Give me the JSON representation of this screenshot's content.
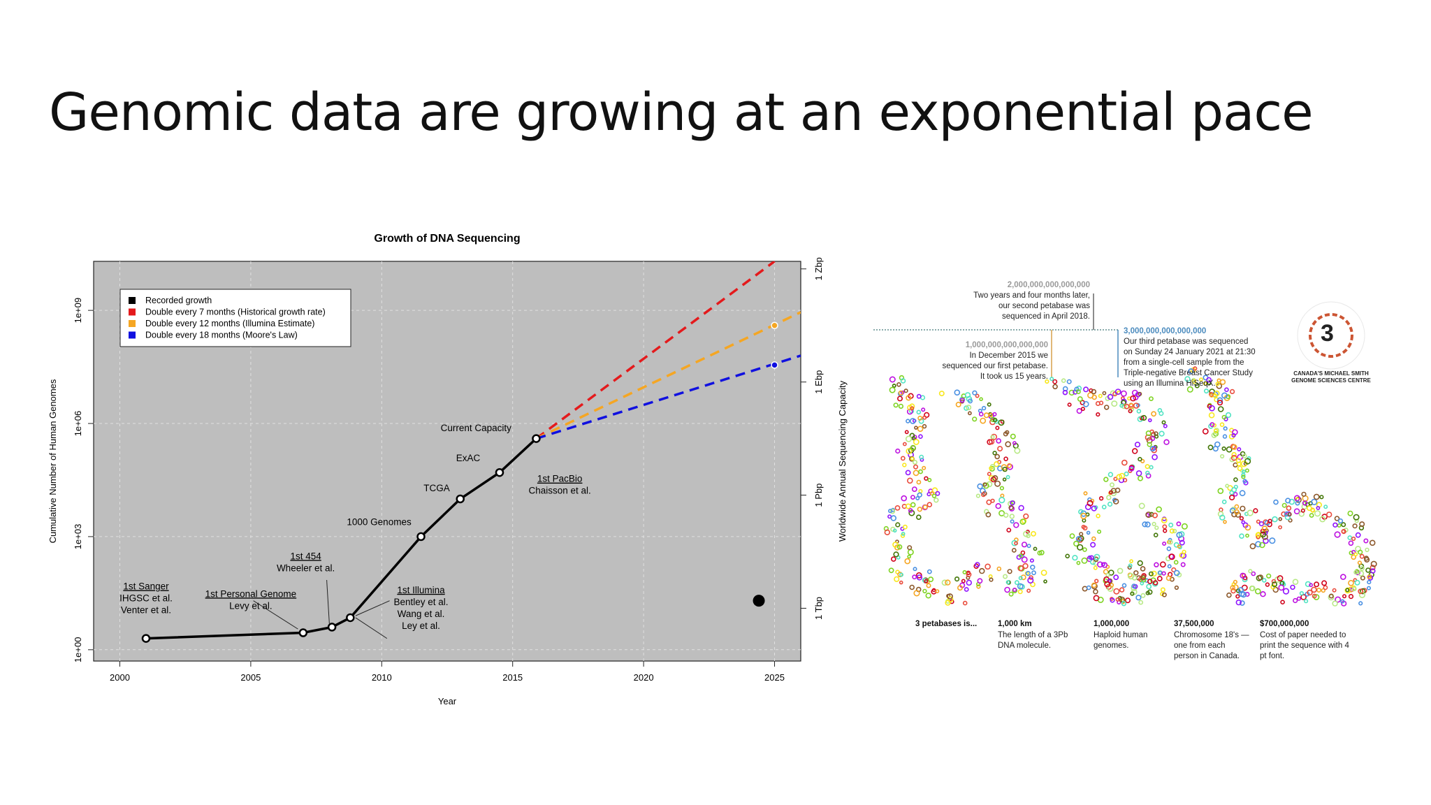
{
  "slide": {
    "title": "Genomic data are growing at an exponential pace"
  },
  "chart_data": {
    "type": "line",
    "title": "Growth of DNA Sequencing",
    "xlabel": "Year",
    "ylabel": "Cumulative Number of Human Genomes",
    "y2label": "Worldwide Annual Sequencing Capacity",
    "log_scale_y": true,
    "xlim": [
      1999,
      2026
    ],
    "ylim_log10": [
      -0.3,
      10.3
    ],
    "x_ticks": [
      2000,
      2005,
      2010,
      2015,
      2020,
      2025
    ],
    "y_ticks": [
      {
        "label": "1e+00",
        "log10": 0
      },
      {
        "label": "1e+03",
        "log10": 3
      },
      {
        "label": "1e+06",
        "log10": 6
      },
      {
        "label": "1e+09",
        "log10": 9
      }
    ],
    "y2_ticks": [
      {
        "label": "1 Tbp",
        "log10": 1.1
      },
      {
        "label": "1 Pbp",
        "log10": 4.1
      },
      {
        "label": "1 Ebp",
        "log10": 7.1
      },
      {
        "label": "1 Zbp",
        "log10": 10.1
      }
    ],
    "grid": true,
    "legend_position": "top-left",
    "legend": [
      {
        "label": "Recorded growth",
        "color": "#000000"
      },
      {
        "label": "Double every 7 months (Historical growth rate)",
        "color": "#e41a1c"
      },
      {
        "label": "Double every 12 months (Illumina Estimate)",
        "color": "#f5a623"
      },
      {
        "label": "Double every 18 months (Moore's Law)",
        "color": "#1010e0"
      }
    ],
    "series": [
      {
        "name": "Recorded growth",
        "color": "#000000",
        "points": [
          {
            "x": 2001,
            "log10": 0.3
          },
          {
            "x": 2007,
            "log10": 0.45
          },
          {
            "x": 2008.1,
            "log10": 0.6
          },
          {
            "x": 2008.8,
            "log10": 0.85
          },
          {
            "x": 2011.5,
            "log10": 3.0
          },
          {
            "x": 2013,
            "log10": 4.0
          },
          {
            "x": 2014.5,
            "log10": 4.7
          },
          {
            "x": 2015.9,
            "log10": 5.6
          }
        ]
      },
      {
        "name": "Double every 7 months (Historical growth rate)",
        "color": "#e41a1c",
        "dashed": true,
        "points": [
          {
            "x": 2015.9,
            "log10": 5.6
          },
          {
            "x": 2025,
            "log10": 10.3
          }
        ]
      },
      {
        "name": "Double every 12 months (Illumina Estimate)",
        "color": "#f5a623",
        "dashed": true,
        "points": [
          {
            "x": 2015.9,
            "log10": 5.6
          },
          {
            "x": 2026,
            "log10": 8.95
          }
        ],
        "marker": {
          "x": 2025,
          "log10": 8.6
        }
      },
      {
        "name": "Double every 18 months (Moore's Law)",
        "color": "#1010e0",
        "dashed": true,
        "points": [
          {
            "x": 2015.9,
            "log10": 5.6
          },
          {
            "x": 2026,
            "log10": 7.8
          }
        ],
        "marker": {
          "x": 2025,
          "log10": 7.55
        }
      }
    ],
    "big_dot": {
      "x": 2024.4,
      "log10": 1.3
    },
    "annotations": [
      {
        "lines": [
          "1st Sanger",
          "IHGSC et al.",
          "Venter et al."
        ],
        "underline_first": true,
        "x": 2001,
        "log10": 1.6
      },
      {
        "lines": [
          "1st Personal Genome",
          "Levy et al."
        ],
        "underline_first": true,
        "x": 2005,
        "log10": 1.4
      },
      {
        "lines": [
          "1st 454",
          "Wheeler et al."
        ],
        "underline_first": true,
        "x": 2007.1,
        "log10": 2.4
      },
      {
        "lines": [
          "1st Illumina",
          "Bentley et al.",
          "Wang et al.",
          "Ley et al."
        ],
        "underline_first": true,
        "x": 2011.5,
        "log10": 1.5
      },
      {
        "lines": [
          "1000 Genomes"
        ],
        "underline_first": false,
        "x": 2009.9,
        "log10": 3.3
      },
      {
        "lines": [
          "TCGA"
        ],
        "underline_first": false,
        "x": 2012.1,
        "log10": 4.2
      },
      {
        "lines": [
          "ExAC"
        ],
        "underline_first": false,
        "x": 2013.3,
        "log10": 5.0
      },
      {
        "lines": [
          "Current Capacity"
        ],
        "underline_first": false,
        "x": 2013.6,
        "log10": 5.8
      },
      {
        "lines": [
          "1st PacBio",
          "Chaisson et al."
        ],
        "underline_first": true,
        "x": 2016.8,
        "log10": 4.45
      }
    ]
  },
  "infographic": {
    "num_2pb": "2,000,000,000,000,000",
    "txt_2pb": [
      "Two years and four months later,",
      "our second petabase was",
      "sequenced in April 2018."
    ],
    "num_1pb": "1,000,000,000,000,000",
    "txt_1pb": [
      "In December 2015 we",
      "sequenced our first petabase.",
      "It took us 15 years."
    ],
    "num_3pb": "3,000,000,000,000,000",
    "txt_3pb": [
      "Our third petabase was sequenced",
      "on Sunday 24 January 2021 at 21:30",
      "from a single-cell sample from the",
      "Triple-negative Breast Cancer Study",
      "using an Illumina HiSeqX."
    ],
    "logo_text": "CANADA'S MICHAEL SMITH GENOME SCIENCES CENTRE",
    "logo_number": "3",
    "facts": [
      {
        "head": "3 petabases is...",
        "body": ""
      },
      {
        "head": "1,000 km",
        "body": "The length of a 3Pb DNA molecule."
      },
      {
        "head": "1,000,000",
        "body": "Haploid human genomes."
      },
      {
        "head": "37,500,000",
        "body": "Chromosome 18's — one from each person in Canada."
      },
      {
        "head": "$700,000,000",
        "body": "Cost of paper needed to print the sequence with 4 pt font."
      }
    ]
  }
}
